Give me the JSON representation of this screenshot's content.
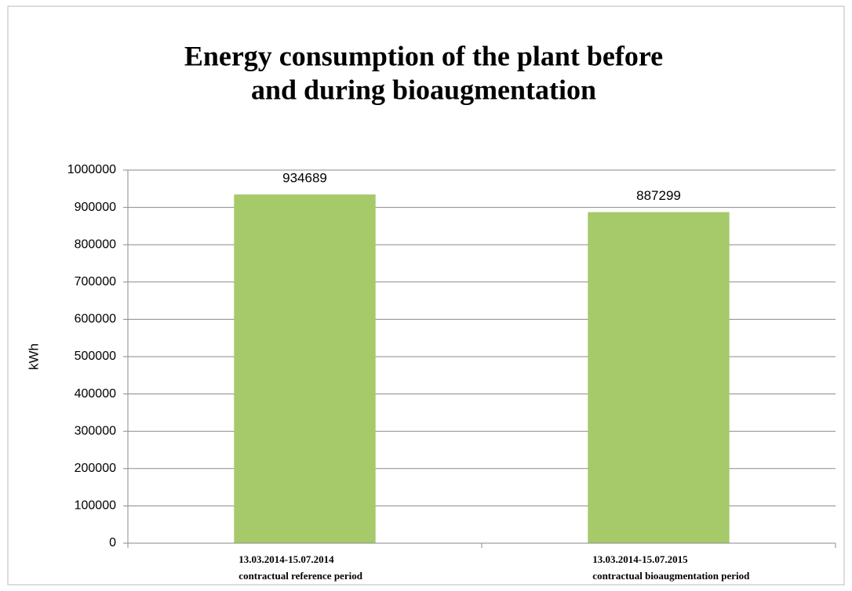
{
  "chart_data": {
    "type": "bar",
    "title": [
      "Energy consumption of the plant before",
      "and during bioaugmentation"
    ],
    "y_label": "kWh",
    "categories": [
      [
        "13.03.2014-15.07.2014",
        "contractual reference period"
      ],
      [
        "13.03.2014-15.07.2015",
        "contractual bioaugmentation period"
      ]
    ],
    "values": [
      934689,
      887299
    ],
    "color": "#a6c96a",
    "ylim": [
      0,
      1000000
    ],
    "yticks": [
      0,
      100000,
      200000,
      300000,
      400000,
      500000,
      600000,
      700000,
      800000,
      900000,
      1000000
    ],
    "grid": true
  }
}
